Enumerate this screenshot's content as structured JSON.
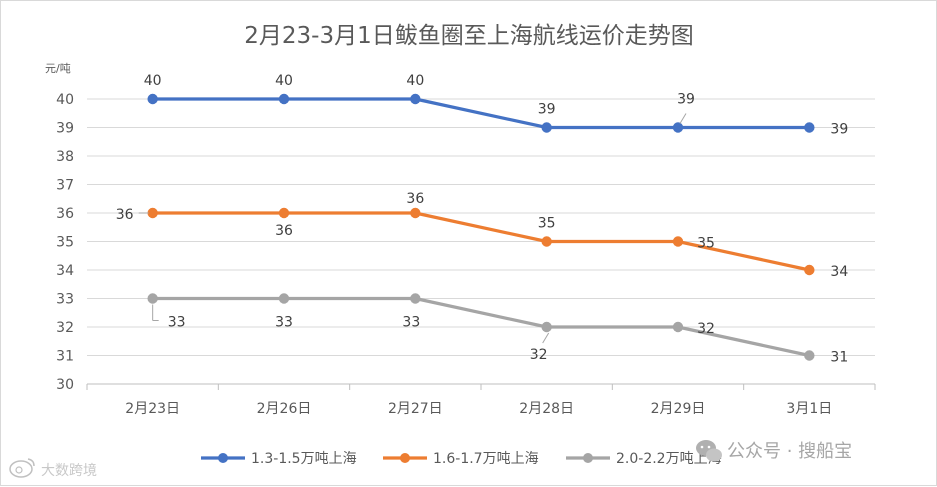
{
  "chart_data": {
    "type": "line",
    "title": "2月23-3月1日鲅鱼圈至上海航线运价走势图",
    "ylabel": "元/吨",
    "xlabel": "",
    "categories": [
      "2月23日",
      "2月26日",
      "2月27日",
      "2月28日",
      "2月29日",
      "3月1日"
    ],
    "ylim": [
      30,
      40
    ],
    "yticks": [
      30,
      31,
      32,
      33,
      34,
      35,
      36,
      37,
      38,
      39,
      40
    ],
    "grid": true,
    "legend_position": "bottom",
    "series": [
      {
        "name": "1.3-1.5万吨上海",
        "values": [
          40,
          40,
          40,
          39,
          39,
          39
        ],
        "color": "#4472c4"
      },
      {
        "name": "1.6-1.7万吨上海",
        "values": [
          36,
          36,
          36,
          35,
          35,
          34
        ],
        "color": "#ed7d31"
      },
      {
        "name": "2.0-2.2万吨上海",
        "values": [
          33,
          33,
          33,
          32,
          32,
          31
        ],
        "color": "#a5a5a5"
      }
    ]
  },
  "watermarks": {
    "right": "公众号 · 搜船宝",
    "left": "大数跨境"
  },
  "icons": {
    "wechat": "wechat-icon",
    "weibo": "weibo-icon"
  }
}
